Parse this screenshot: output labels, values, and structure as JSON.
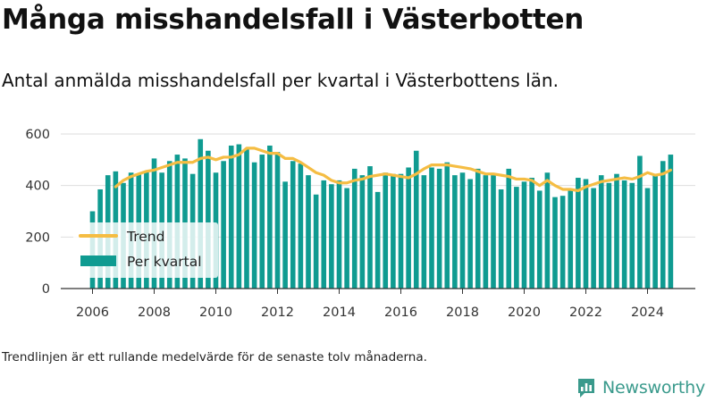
{
  "title": "Många misshandelsfall i Västerbotten",
  "subtitle": "Antal anmälda misshandelsfall per kvartal i Västerbottens län.",
  "footnote": "Trendlinjen är ett rullande medelvärde för de senaste tolv månaderna.",
  "brand": {
    "name": "Newsworthy"
  },
  "icons": {
    "brand": "bar-chart-speech-bubble-icon"
  },
  "colors": {
    "bars": "#0f9b91",
    "trend": "#f5bd43",
    "brand": "#3a9a8c",
    "grid": "#dedede",
    "axis": "#333333"
  },
  "chart_data": {
    "type": "bar",
    "title": "",
    "xlabel": "",
    "ylabel": "",
    "ylim": [
      0,
      600
    ],
    "yticks": [
      0,
      200,
      400,
      600
    ],
    "xticks": [
      "2006",
      "2008",
      "2010",
      "2012",
      "2014",
      "2016",
      "2018",
      "2020",
      "2022",
      "2024"
    ],
    "grid": "horizontal",
    "legend_position": "bottom-left",
    "x_start": {
      "year": 2006,
      "quarter": 1
    },
    "series": [
      {
        "name": "Per kvartal",
        "kind": "bar",
        "values": [
          300,
          385,
          440,
          455,
          410,
          450,
          445,
          455,
          505,
          450,
          495,
          520,
          505,
          445,
          580,
          535,
          450,
          495,
          555,
          560,
          540,
          490,
          520,
          555,
          530,
          415,
          495,
          485,
          440,
          365,
          420,
          405,
          420,
          390,
          465,
          440,
          475,
          375,
          450,
          445,
          445,
          470,
          535,
          440,
          470,
          465,
          490,
          440,
          450,
          425,
          465,
          440,
          440,
          385,
          465,
          395,
          415,
          430,
          380,
          450,
          355,
          360,
          380,
          430,
          425,
          390,
          440,
          410,
          445,
          420,
          410,
          515,
          390,
          440,
          495,
          520
        ]
      },
      {
        "name": "Trend",
        "kind": "line",
        "values": [
          null,
          null,
          null,
          395,
          420,
          435,
          445,
          455,
          460,
          470,
          480,
          490,
          490,
          490,
          505,
          510,
          500,
          510,
          510,
          520,
          545,
          545,
          535,
          525,
          525,
          505,
          505,
          490,
          470,
          450,
          440,
          420,
          410,
          410,
          420,
          425,
          435,
          440,
          445,
          440,
          435,
          430,
          445,
          465,
          480,
          480,
          480,
          475,
          470,
          465,
          455,
          445,
          445,
          440,
          435,
          425,
          425,
          420,
          400,
          420,
          400,
          385,
          385,
          380,
          395,
          405,
          415,
          420,
          425,
          430,
          425,
          435,
          450,
          440,
          445,
          460
        ]
      }
    ]
  }
}
